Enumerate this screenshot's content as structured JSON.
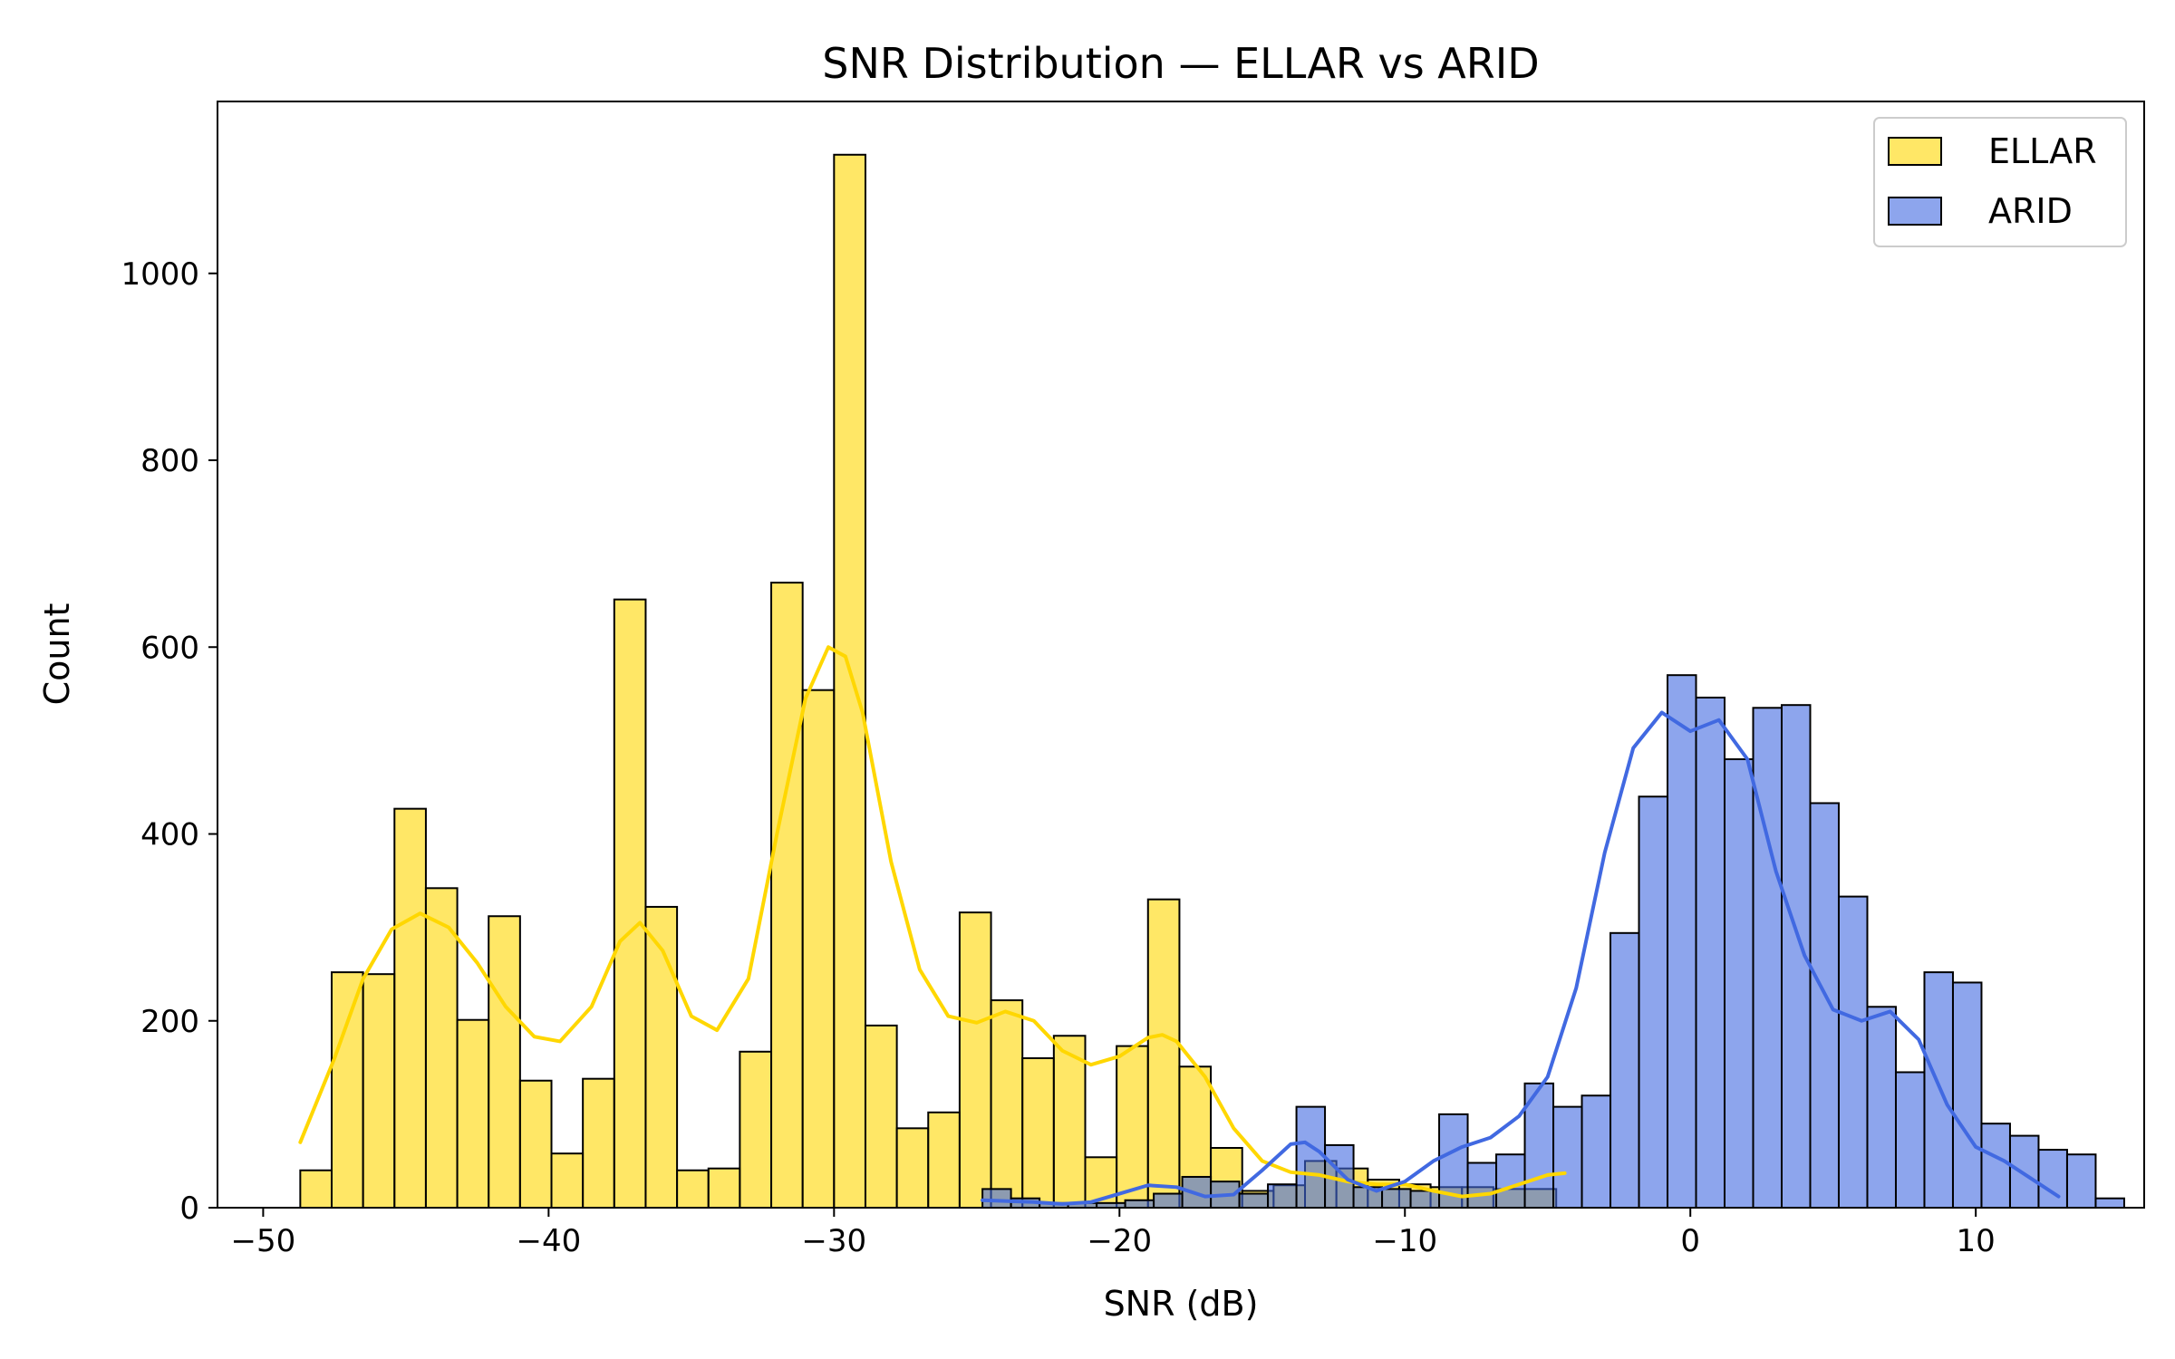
{
  "chart_data": {
    "type": "histogram",
    "title": "SNR Distribution — ELLAR vs ARID",
    "xlabel": "SNR (dB)",
    "ylabel": "Count",
    "xlim": [
      -51.6,
      15.9
    ],
    "ylim": [
      0,
      1184
    ],
    "x_ticks": [
      -50,
      -40,
      -30,
      -20,
      -10,
      0,
      10
    ],
    "y_ticks": [
      0,
      200,
      400,
      600,
      800,
      1000
    ],
    "grid": false,
    "legend_position": "top-right",
    "colors": {
      "ELLAR_fill": "#ffd700",
      "ELLAR_kde": "#ffd700",
      "ARID_fill": "#4169e1",
      "ARID_kde": "#4169e1",
      "bar_edge": "#000000",
      "bar_alpha": 0.6
    },
    "series": [
      {
        "name": "ELLAR",
        "bin_start": -48.7,
        "bin_width": 1.1,
        "counts": [
          40,
          252,
          250,
          427,
          342,
          201,
          312,
          136,
          58,
          138,
          651,
          322,
          40,
          42,
          167,
          669,
          554,
          1127,
          195,
          85,
          102,
          316,
          222,
          160,
          184,
          54,
          173,
          330,
          151,
          64,
          18,
          24,
          50,
          42,
          30,
          25,
          22,
          22,
          20,
          20
        ],
        "kde": {
          "x": [
            -48.7,
            -47.5,
            -46.5,
            -45.5,
            -44.5,
            -43.5,
            -42.5,
            -41.5,
            -40.5,
            -39.6,
            -38.5,
            -37.5,
            -36.8,
            -36.0,
            -35.0,
            -34.1,
            -33.0,
            -32.0,
            -31.0,
            -30.2,
            -29.6,
            -29.0,
            -28.0,
            -27.0,
            -26.0,
            -25.0,
            -24.0,
            -23.0,
            -22.0,
            -21.0,
            -20.0,
            -19.0,
            -18.5,
            -18.0,
            -17.0,
            -16.0,
            -15.0,
            -14.0,
            -13.0,
            -12.0,
            -11.0,
            -10.0,
            -9.0,
            -8.0,
            -7.0,
            -6.0,
            -5.0,
            -4.4
          ],
          "y": [
            70,
            160,
            245,
            298,
            315,
            300,
            262,
            215,
            183,
            178,
            215,
            285,
            305,
            275,
            205,
            190,
            245,
            400,
            545,
            600,
            590,
            530,
            370,
            255,
            205,
            198,
            210,
            200,
            168,
            153,
            162,
            182,
            185,
            178,
            140,
            85,
            50,
            38,
            35,
            28,
            25,
            25,
            18,
            12,
            15,
            25,
            35,
            37
          ]
        }
      },
      {
        "name": "ARID",
        "bin_start": -24.8,
        "bin_width": 1.0,
        "counts": [
          20,
          10,
          5,
          5,
          5,
          8,
          15,
          33,
          28,
          15,
          25,
          108,
          67,
          22,
          20,
          18,
          100,
          48,
          57,
          133,
          108,
          120,
          294,
          440,
          570,
          546,
          480,
          535,
          538,
          433,
          333,
          215,
          145,
          252,
          241,
          90,
          77,
          62,
          57,
          10
        ],
        "kde": {
          "x": [
            -24.8,
            -23.0,
            -22.0,
            -21.0,
            -20.0,
            -19.0,
            -18.0,
            -17.0,
            -16.0,
            -15.0,
            -14.0,
            -13.5,
            -13.0,
            -12.0,
            -11.0,
            -10.0,
            -9.0,
            -8.0,
            -7.0,
            -6.0,
            -5.0,
            -4.0,
            -3.0,
            -2.0,
            -1.0,
            0.0,
            1.0,
            2.0,
            3.0,
            4.0,
            5.0,
            6.0,
            7.0,
            8.0,
            9.0,
            10.0,
            11.0,
            12.0,
            12.9
          ],
          "y": [
            8,
            6,
            4,
            6,
            15,
            24,
            22,
            12,
            14,
            40,
            68,
            70,
            60,
            30,
            18,
            28,
            50,
            65,
            75,
            98,
            140,
            235,
            380,
            492,
            530,
            510,
            522,
            480,
            360,
            270,
            212,
            200,
            210,
            180,
            110,
            65,
            50,
            30,
            12
          ]
        }
      }
    ]
  }
}
